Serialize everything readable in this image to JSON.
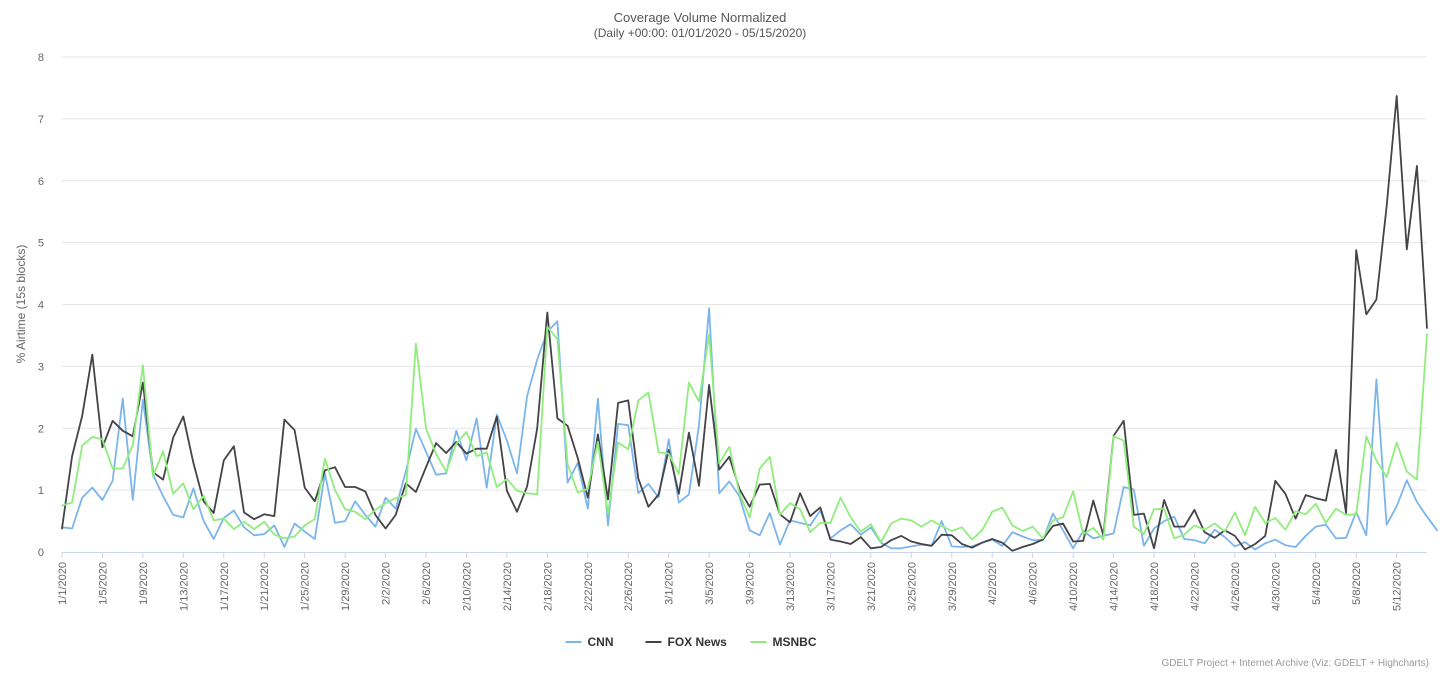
{
  "chart_data": {
    "type": "line",
    "title": "Coverage Volume Normalized",
    "subtitle": "(Daily +00:00: 01/01/2020 - 05/15/2020)",
    "ylabel": "% Airtime (15s blocks)",
    "xlabel": "",
    "ylim": [
      0,
      8
    ],
    "yticks": [
      0,
      1,
      2,
      3,
      4,
      5,
      6,
      7,
      8
    ],
    "grid": true,
    "legend_position": "bottom-center",
    "x_start": "2020-01-01",
    "x_end": "2020-05-15",
    "x_tick_labels": [
      "1/1/2020",
      "1/5/2020",
      "1/9/2020",
      "1/13/2020",
      "1/17/2020",
      "1/21/2020",
      "1/25/2020",
      "1/29/2020",
      "2/2/2020",
      "2/6/2020",
      "2/10/2020",
      "2/14/2020",
      "2/18/2020",
      "2/22/2020",
      "2/26/2020",
      "3/1/2020",
      "3/5/2020",
      "3/9/2020",
      "3/13/2020",
      "3/17/2020",
      "3/21/2020",
      "3/25/2020",
      "3/29/2020",
      "4/2/2020",
      "4/6/2020",
      "4/10/2020",
      "4/14/2020",
      "4/18/2020",
      "4/22/2020",
      "4/26/2020",
      "4/30/2020",
      "5/4/2020",
      "5/8/2020",
      "5/12/2020"
    ],
    "series": [
      {
        "name": "CNN",
        "color": "#7cb5ec",
        "values": [
          0.4,
          0.38,
          0.88,
          1.04,
          0.84,
          1.15,
          2.48,
          0.84,
          2.46,
          1.25,
          0.9,
          0.6,
          0.56,
          1.03,
          0.5,
          0.21,
          0.55,
          0.67,
          0.4,
          0.27,
          0.29,
          0.43,
          0.08,
          0.46,
          0.33,
          0.21,
          1.27,
          0.47,
          0.5,
          0.82,
          0.6,
          0.41,
          0.88,
          0.7,
          1.3,
          1.99,
          1.62,
          1.25,
          1.27,
          1.96,
          1.48,
          2.16,
          1.04,
          2.22,
          1.8,
          1.27,
          2.52,
          3.11,
          3.56,
          3.73,
          1.12,
          1.44,
          0.7,
          2.48,
          0.43,
          2.07,
          2.05,
          0.95,
          1.1,
          0.88,
          1.82,
          0.8,
          0.93,
          2.05,
          3.94,
          0.95,
          1.14,
          0.9,
          0.35,
          0.27,
          0.63,
          0.12,
          0.51,
          0.47,
          0.43,
          0.67,
          0.22,
          0.35,
          0.45,
          0.28,
          0.4,
          0.15,
          0.06,
          0.06,
          0.09,
          0.12,
          0.1,
          0.5,
          0.09,
          0.08,
          0.09,
          0.15,
          0.2,
          0.1,
          0.32,
          0.25,
          0.19,
          0.19,
          0.62,
          0.35,
          0.06,
          0.34,
          0.22,
          0.26,
          0.3,
          1.05,
          1.01,
          0.1,
          0.38,
          0.5,
          0.57,
          0.21,
          0.19,
          0.14,
          0.36,
          0.24,
          0.09,
          0.16,
          0.04,
          0.14,
          0.2,
          0.11,
          0.08,
          0.26,
          0.41,
          0.44,
          0.22,
          0.23,
          0.65,
          0.27,
          2.79,
          0.44,
          0.74,
          1.16,
          0.81,
          0.57,
          0.35
        ]
      },
      {
        "name": "FOX News",
        "color": "#434348",
        "values": [
          0.38,
          1.55,
          2.2,
          3.19,
          1.69,
          2.12,
          1.96,
          1.87,
          2.74,
          1.29,
          1.17,
          1.85,
          2.19,
          1.44,
          0.82,
          0.63,
          1.48,
          1.71,
          0.64,
          0.53,
          0.61,
          0.58,
          2.14,
          1.97,
          1.04,
          0.82,
          1.32,
          1.37,
          1.05,
          1.05,
          0.98,
          0.6,
          0.38,
          0.6,
          1.11,
          0.97,
          1.37,
          1.76,
          1.6,
          1.78,
          1.59,
          1.67,
          1.67,
          2.19,
          0.99,
          0.65,
          1.06,
          2.0,
          3.87,
          2.16,
          2.04,
          1.52,
          0.88,
          1.9,
          0.85,
          2.41,
          2.45,
          1.19,
          0.73,
          0.93,
          1.65,
          0.94,
          1.93,
          1.07,
          2.7,
          1.33,
          1.54,
          1.02,
          0.73,
          1.09,
          1.1,
          0.61,
          0.48,
          0.95,
          0.58,
          0.72,
          0.2,
          0.17,
          0.13,
          0.24,
          0.06,
          0.08,
          0.19,
          0.26,
          0.17,
          0.13,
          0.1,
          0.28,
          0.27,
          0.13,
          0.07,
          0.15,
          0.21,
          0.15,
          0.02,
          0.08,
          0.13,
          0.2,
          0.42,
          0.46,
          0.17,
          0.18,
          0.83,
          0.27,
          1.88,
          2.12,
          0.6,
          0.62,
          0.06,
          0.84,
          0.41,
          0.41,
          0.68,
          0.32,
          0.23,
          0.35,
          0.26,
          0.04,
          0.13,
          0.26,
          1.15,
          0.94,
          0.54,
          0.92,
          0.87,
          0.83,
          1.65,
          0.63,
          4.88,
          3.84,
          4.08,
          5.58,
          7.37,
          4.89,
          6.24,
          3.62
        ]
      },
      {
        "name": "MSNBC",
        "color": "#90ed7d",
        "values": [
          0.75,
          0.8,
          1.72,
          1.86,
          1.82,
          1.35,
          1.35,
          1.73,
          3.02,
          1.22,
          1.63,
          0.94,
          1.11,
          0.69,
          0.91,
          0.51,
          0.54,
          0.37,
          0.49,
          0.37,
          0.49,
          0.28,
          0.22,
          0.25,
          0.43,
          0.53,
          1.51,
          1.0,
          0.69,
          0.65,
          0.53,
          0.68,
          0.79,
          0.87,
          0.92,
          3.37,
          2.0,
          1.58,
          1.3,
          1.75,
          1.94,
          1.55,
          1.61,
          1.05,
          1.18,
          0.99,
          0.95,
          0.93,
          3.64,
          3.44,
          1.42,
          0.96,
          1.02,
          1.78,
          0.62,
          1.77,
          1.66,
          2.45,
          2.58,
          1.61,
          1.59,
          1.26,
          2.74,
          2.43,
          3.51,
          1.43,
          1.7,
          0.95,
          0.56,
          1.35,
          1.54,
          0.6,
          0.79,
          0.69,
          0.32,
          0.47,
          0.47,
          0.88,
          0.56,
          0.33,
          0.45,
          0.16,
          0.46,
          0.54,
          0.51,
          0.41,
          0.51,
          0.42,
          0.34,
          0.4,
          0.2,
          0.35,
          0.65,
          0.72,
          0.43,
          0.34,
          0.41,
          0.22,
          0.51,
          0.56,
          0.98,
          0.29,
          0.39,
          0.2,
          1.87,
          1.8,
          0.41,
          0.29,
          0.69,
          0.7,
          0.22,
          0.28,
          0.43,
          0.36,
          0.46,
          0.33,
          0.64,
          0.27,
          0.73,
          0.47,
          0.55,
          0.36,
          0.66,
          0.61,
          0.78,
          0.47,
          0.7,
          0.6,
          0.61,
          1.87,
          1.48,
          1.21,
          1.77,
          1.3,
          1.17,
          3.52
        ]
      }
    ]
  },
  "credit": "GDELT Project + Internet Archive (Viz: GDELT + Highcharts)"
}
